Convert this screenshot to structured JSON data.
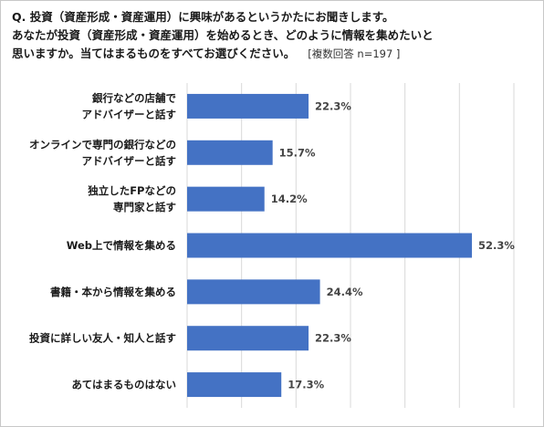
{
  "question": {
    "line1": "Q. 投資（資産形成・資産運用）に興味があるというかたにお聞きします。",
    "line2": "あなたが投資（資産形成・資産運用）を始めるとき、どのように情報を集めたいと",
    "line3": "思いますか。当てはまるものをすべてお選びください。",
    "note": "[複数回答 n=197 ]"
  },
  "chart_data": {
    "type": "bar",
    "orientation": "horizontal",
    "categories": [
      [
        "銀行などの店舗で",
        "アドバイザーと話す"
      ],
      [
        "オンラインで専門の銀行などの",
        "アドバイザーと話す"
      ],
      [
        "独立したFPなどの",
        "専門家と話す"
      ],
      [
        "Web上で情報を集める"
      ],
      [
        "書籍・本から情報を集める"
      ],
      [
        "投資に詳しい友人・知人と話す"
      ],
      [
        "あてはまるものはない"
      ]
    ],
    "values": [
      22.3,
      15.7,
      14.2,
      52.3,
      24.4,
      22.3,
      17.3
    ],
    "value_labels": [
      "22.3%",
      "15.7%",
      "14.2%",
      "52.3%",
      "24.4%",
      "22.3%",
      "17.3%"
    ],
    "xlim": [
      0,
      60
    ],
    "grid": true,
    "bar_color": "#4472c4",
    "grid_color": "#d9d9d9"
  }
}
